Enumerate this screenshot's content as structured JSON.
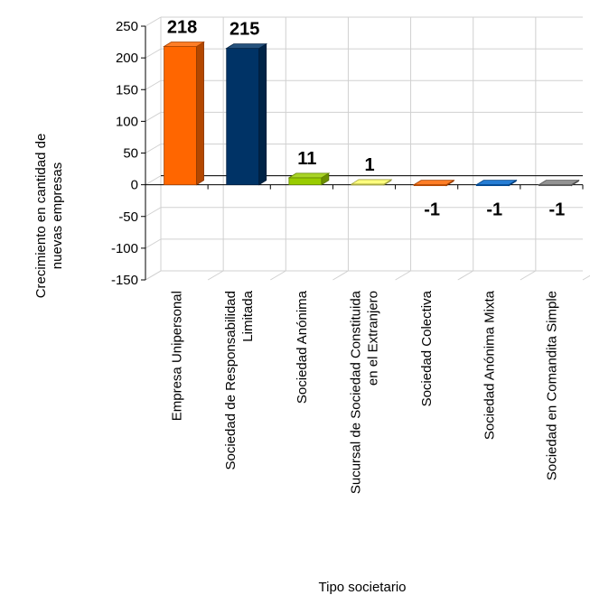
{
  "chart_data": {
    "type": "bar",
    "xlabel": "Tipo societario",
    "ylabel_lines": [
      "Crecimiento en cantidad de",
      "nuevas empresas"
    ],
    "ylim": [
      -150,
      250
    ],
    "yticks": [
      "250",
      "200",
      "150",
      "100",
      "50",
      "0",
      "-50",
      "-100",
      "-150"
    ],
    "grid": true,
    "categories": [
      [
        "Empresa Unipersonal"
      ],
      [
        "Sociedad de Responsabilidad",
        "Limitada"
      ],
      [
        "Sociedad Anónima"
      ],
      [
        "Sucursal de Sociedad Constituida",
        "en el Extranjero"
      ],
      [
        "Sociedad Colectiva"
      ],
      [
        "Sociedad Anónima Mixta"
      ],
      [
        "Sociedad en Comandita Simple"
      ]
    ],
    "values": [
      218,
      215,
      11,
      1,
      -1,
      -1,
      -1
    ],
    "labels": [
      "218",
      "215",
      "11",
      "1",
      "-1",
      "-1",
      "-1"
    ],
    "colors": [
      "#FF6600",
      "#003366",
      "#99CC00",
      "#FFFF66",
      "#FF6600",
      "#0066CC",
      "#808080"
    ]
  }
}
